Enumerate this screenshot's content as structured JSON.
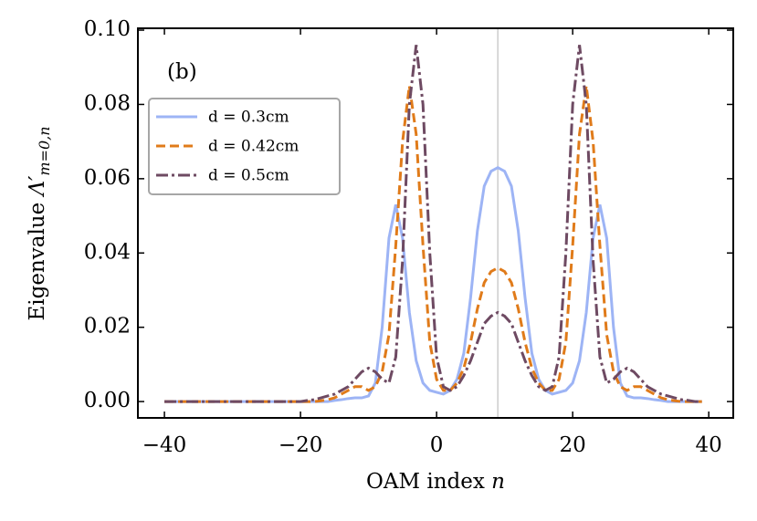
{
  "chart_data": {
    "type": "line",
    "annotation": "(b)",
    "xlabel": {
      "text": "OAM index",
      "symbol": "n"
    },
    "ylabel": {
      "text": "Eigenvalue",
      "symbol": "Λ′",
      "subscript": "m=0,n"
    },
    "vline": 9,
    "vline_color": "#cccccc",
    "legend": "upper left",
    "xlim": [
      -43.9,
      43.6
    ],
    "ylim": [
      -0.0044,
      0.1005
    ],
    "xticks": [
      {
        "value": -40,
        "label": "−40"
      },
      {
        "value": -20,
        "label": "−20"
      },
      0,
      20,
      40
    ],
    "yticks": [
      {
        "value": 0,
        "label": "0.00"
      },
      {
        "value": 0.02,
        "label": "0.02"
      },
      {
        "value": 0.04,
        "label": "0.04"
      },
      {
        "value": 0.06,
        "label": "0.06"
      },
      {
        "value": 0.08,
        "label": "0.08"
      },
      {
        "value": 0.1,
        "label": "0.10"
      }
    ],
    "x": [
      -40,
      -39,
      -38,
      -37,
      -36,
      -35,
      -34,
      -33,
      -32,
      -31,
      -30,
      -29,
      -28,
      -27,
      -26,
      -25,
      -24,
      -23,
      -22,
      -21,
      -20,
      -19,
      -18,
      -17,
      -16,
      -15,
      -14,
      -13,
      -12,
      -11,
      -10,
      -9,
      -8,
      -7,
      -6,
      -5,
      -4,
      -3,
      -2,
      -1,
      0,
      1,
      2,
      3,
      4,
      5,
      6,
      7,
      8,
      9,
      10,
      11,
      12,
      13,
      14,
      15,
      16,
      17,
      18,
      19,
      20,
      21,
      22,
      23,
      24,
      25,
      26,
      27,
      28,
      29,
      30,
      31,
      32,
      33,
      34,
      35,
      36,
      37,
      38,
      39
    ],
    "series": [
      {
        "name": "d = 0.3cm",
        "color": "#9db4f5",
        "dash": "solid",
        "values": [
          0,
          0,
          0,
          0,
          0,
          0,
          0,
          0,
          0,
          0,
          0,
          0,
          0,
          0,
          0,
          0,
          0,
          0,
          0,
          0,
          0,
          0,
          0,
          0,
          0,
          0.0003,
          0.0005,
          0.0008,
          0.001,
          0.001,
          0.0015,
          0.005,
          0.02,
          0.044,
          0.053,
          0.044,
          0.024,
          0.011,
          0.005,
          0.003,
          0.0025,
          0.002,
          0.003,
          0.006,
          0.013,
          0.028,
          0.046,
          0.058,
          0.062,
          0.063,
          0.062,
          0.058,
          0.046,
          0.028,
          0.013,
          0.006,
          0.003,
          0.002,
          0.0025,
          0.003,
          0.005,
          0.011,
          0.024,
          0.044,
          0.053,
          0.044,
          0.02,
          0.005,
          0.0015,
          0.001,
          0.001,
          0.0008,
          0.0005,
          0.0003,
          0,
          0,
          0,
          0,
          0,
          0
        ]
      },
      {
        "name": "d = 0.42cm",
        "color": "#e07b1a",
        "dash": "dashed",
        "values": [
          0,
          0,
          0,
          0,
          0,
          0,
          0,
          0,
          0,
          0,
          0,
          0,
          0,
          0,
          0,
          0,
          0,
          0,
          0,
          0,
          0,
          0,
          0,
          0.0002,
          0.0005,
          0.001,
          0.002,
          0.003,
          0.004,
          0.004,
          0.003,
          0.004,
          0.008,
          0.018,
          0.042,
          0.07,
          0.085,
          0.072,
          0.042,
          0.016,
          0.006,
          0.003,
          0.003,
          0.005,
          0.009,
          0.016,
          0.025,
          0.032,
          0.035,
          0.036,
          0.035,
          0.032,
          0.025,
          0.016,
          0.009,
          0.005,
          0.003,
          0.003,
          0.006,
          0.016,
          0.042,
          0.072,
          0.085,
          0.07,
          0.042,
          0.018,
          0.008,
          0.004,
          0.003,
          0.004,
          0.004,
          0.003,
          0.002,
          0.001,
          0.0005,
          0.0002,
          0,
          0,
          0,
          0
        ]
      },
      {
        "name": "d = 0.5cm",
        "color": "#6e4a62",
        "dash": "dashdot",
        "values": [
          0,
          0,
          0,
          0,
          0,
          0,
          0,
          0,
          0,
          0,
          0,
          0,
          0,
          0,
          0,
          0,
          0,
          0,
          0,
          0,
          0,
          0.0003,
          0.0005,
          0.001,
          0.0015,
          0.002,
          0.003,
          0.004,
          0.006,
          0.008,
          0.009,
          0.008,
          0.006,
          0.005,
          0.012,
          0.038,
          0.08,
          0.096,
          0.08,
          0.04,
          0.012,
          0.004,
          0.003,
          0.004,
          0.007,
          0.011,
          0.016,
          0.021,
          0.023,
          0.024,
          0.023,
          0.021,
          0.016,
          0.011,
          0.007,
          0.004,
          0.003,
          0.004,
          0.012,
          0.04,
          0.08,
          0.096,
          0.08,
          0.038,
          0.012,
          0.005,
          0.006,
          0.008,
          0.009,
          0.008,
          0.006,
          0.004,
          0.003,
          0.002,
          0.0015,
          0.001,
          0.0005,
          0.0003,
          0,
          0
        ]
      }
    ]
  }
}
